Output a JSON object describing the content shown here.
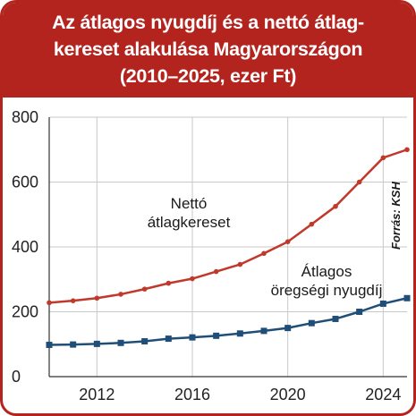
{
  "colors": {
    "accent": "#b3241f",
    "series_net": "#c0392b",
    "series_pension": "#1f4e79",
    "grid": "#c8c8c8",
    "axis": "#333333"
  },
  "header": {
    "title_line1": "Az átlagos nyugdíj és a nettó átlag-",
    "title_line2": "kereset alakulása Magyarországon",
    "title_line3": "(2010–2025, ezer Ft)"
  },
  "chart_data": {
    "type": "line",
    "title": "Az átlagos nyugdíj és a nettó átlagkereset alakulása Magyarországon (2010–2025, ezer Ft)",
    "xlabel": "",
    "ylabel": "",
    "xlim": [
      2010,
      2025
    ],
    "ylim": [
      0,
      800
    ],
    "x_ticks": [
      "2012",
      "2016",
      "2020",
      "2024"
    ],
    "y_ticks": [
      "0",
      "200",
      "400",
      "600",
      "800"
    ],
    "grid": true,
    "x": [
      2010,
      2011,
      2012,
      2013,
      2014,
      2015,
      2016,
      2017,
      2018,
      2019,
      2020,
      2021,
      2022,
      2023,
      2024,
      2025
    ],
    "series": [
      {
        "name": "Nettó átlagkereset",
        "label_lines": [
          "Nettó",
          "átlagkereset"
        ],
        "color": "#c0392b",
        "marker": "circle",
        "values": [
          228,
          234,
          242,
          254,
          270,
          288,
          302,
          324,
          346,
          380,
          416,
          470,
          525,
          600,
          675,
          700
        ]
      },
      {
        "name": "Átlagos öregségi nyugdíj",
        "label_lines": [
          "Átlagos",
          "öregségi nyugdíj"
        ],
        "color": "#1f4e79",
        "marker": "square",
        "values": [
          98,
          99,
          101,
          104,
          109,
          117,
          121,
          126,
          133,
          141,
          150,
          165,
          178,
          200,
          225,
          242
        ]
      }
    ],
    "source": "Forrás: KSH"
  }
}
